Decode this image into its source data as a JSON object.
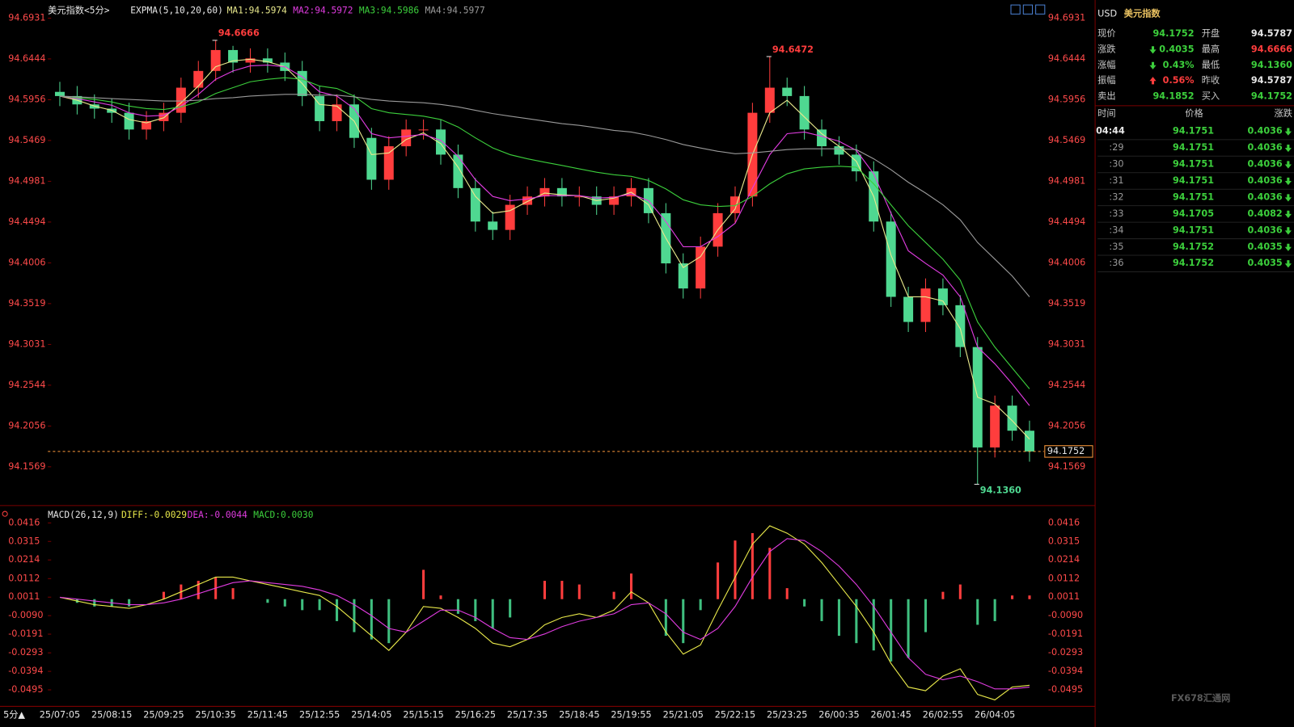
{
  "chart_data": [
    {
      "type": "candlestick",
      "title": "美元指数<5分>",
      "indicator": "EXPMA(5,10,20,60)",
      "categories": [
        "25/07:05",
        null,
        null,
        "25/08:15",
        null,
        null,
        "25/09:25",
        null,
        null,
        "25/10:35",
        null,
        null,
        "25/11:45",
        null,
        null,
        "25/12:55",
        null,
        null,
        "25/14:05",
        null,
        null,
        "25/15:15",
        null,
        null,
        "25/16:25",
        null,
        null,
        "25/17:35",
        null,
        null,
        "25/18:45",
        null,
        null,
        "25/19:55",
        null,
        null,
        "25/21:05",
        null,
        null,
        "25/22:15",
        null,
        null,
        "25/23:25",
        null,
        null,
        "26/00:35",
        null,
        null,
        "26/01:45",
        null,
        null,
        "26/02:55",
        null,
        null,
        "26/04:05",
        null,
        null
      ],
      "open": [
        94.605,
        94.6,
        94.59,
        94.585,
        94.58,
        94.56,
        94.57,
        94.58,
        94.61,
        94.63,
        94.655,
        94.64,
        94.645,
        94.64,
        94.63,
        94.6,
        94.57,
        94.59,
        94.55,
        94.5,
        94.54,
        94.56,
        94.56,
        94.53,
        94.49,
        94.45,
        94.44,
        94.47,
        94.48,
        94.49,
        94.48,
        94.48,
        94.47,
        94.48,
        94.49,
        94.46,
        94.4,
        94.37,
        94.42,
        94.46,
        94.48,
        94.58,
        94.61,
        94.6,
        94.56,
        94.54,
        94.53,
        94.51,
        94.45,
        94.36,
        94.33,
        94.37,
        94.35,
        94.3,
        94.18,
        94.23,
        94.2
      ],
      "high": [
        94.617,
        94.612,
        94.602,
        94.597,
        94.592,
        94.582,
        94.592,
        94.622,
        94.642,
        94.6666,
        94.66,
        94.657,
        94.657,
        94.652,
        94.642,
        94.612,
        94.602,
        94.602,
        94.562,
        94.552,
        94.572,
        94.572,
        94.572,
        94.542,
        94.502,
        94.462,
        94.482,
        94.492,
        94.502,
        94.502,
        94.492,
        94.492,
        94.492,
        94.502,
        94.502,
        94.472,
        94.412,
        94.432,
        94.472,
        94.492,
        94.592,
        94.6472,
        94.622,
        94.612,
        94.572,
        94.552,
        94.542,
        94.522,
        94.462,
        94.372,
        94.382,
        94.382,
        94.362,
        94.312,
        94.242,
        94.242,
        94.212
      ],
      "low": [
        94.588,
        94.578,
        94.573,
        94.568,
        94.548,
        94.548,
        94.558,
        94.568,
        94.598,
        94.618,
        94.628,
        94.628,
        94.628,
        94.618,
        94.588,
        94.558,
        94.558,
        94.538,
        94.488,
        94.488,
        94.528,
        94.548,
        94.518,
        94.478,
        94.438,
        94.428,
        94.428,
        94.458,
        94.468,
        94.468,
        94.468,
        94.458,
        94.458,
        94.468,
        94.448,
        94.388,
        94.358,
        94.358,
        94.408,
        94.448,
        94.468,
        94.568,
        94.588,
        94.548,
        94.528,
        94.518,
        94.498,
        94.438,
        94.348,
        94.318,
        94.318,
        94.338,
        94.288,
        94.136,
        94.168,
        94.188,
        94.163
      ],
      "close": [
        94.6,
        94.59,
        94.585,
        94.58,
        94.56,
        94.57,
        94.58,
        94.61,
        94.63,
        94.655,
        94.64,
        94.645,
        94.64,
        94.63,
        94.6,
        94.57,
        94.59,
        94.55,
        94.5,
        94.54,
        94.56,
        94.56,
        94.53,
        94.49,
        94.45,
        94.44,
        94.47,
        94.48,
        94.49,
        94.48,
        94.48,
        94.47,
        94.48,
        94.49,
        94.46,
        94.4,
        94.37,
        94.42,
        94.46,
        94.48,
        94.58,
        94.61,
        94.6,
        94.56,
        94.54,
        94.53,
        94.51,
        94.45,
        94.36,
        94.33,
        94.37,
        94.35,
        94.3,
        94.18,
        94.23,
        94.2,
        94.1752
      ],
      "up_color": "#ff3d3d",
      "down_color": "#4fd891",
      "series": [
        {
          "name": "MA1:94.5974",
          "color": "#e8e88c",
          "values": [
            94.6,
            94.595,
            94.588,
            94.583,
            94.572,
            94.568,
            94.574,
            94.592,
            94.612,
            94.635,
            94.642,
            94.644,
            94.641,
            94.635,
            94.615,
            94.59,
            94.588,
            94.57,
            94.53,
            94.532,
            94.548,
            94.556,
            94.543,
            94.515,
            94.48,
            94.46,
            94.463,
            94.474,
            94.484,
            94.482,
            94.481,
            94.475,
            94.478,
            94.485,
            94.47,
            94.43,
            94.395,
            94.408,
            94.44,
            94.465,
            94.53,
            94.58,
            94.595,
            94.575,
            94.555,
            94.54,
            94.522,
            94.48,
            94.41,
            94.36,
            94.36,
            94.355,
            94.322,
            94.24,
            94.232,
            94.212,
            94.19
          ]
        },
        {
          "name": "MA2:94.5972",
          "color": "#e03ce0",
          "values": [
            94.6,
            94.597,
            94.593,
            94.589,
            94.58,
            94.576,
            94.577,
            94.588,
            94.602,
            94.62,
            94.63,
            94.636,
            94.637,
            94.635,
            94.623,
            94.605,
            94.6,
            94.585,
            94.555,
            94.55,
            94.552,
            94.554,
            94.547,
            94.528,
            94.5,
            94.48,
            94.475,
            94.477,
            94.481,
            94.481,
            94.481,
            94.478,
            94.479,
            94.483,
            94.475,
            94.45,
            94.42,
            94.42,
            94.432,
            94.448,
            94.49,
            94.53,
            94.555,
            94.557,
            94.552,
            94.546,
            94.535,
            94.507,
            94.46,
            94.415,
            94.4,
            94.386,
            94.36,
            94.3,
            94.28,
            94.256,
            94.23
          ]
        },
        {
          "name": "MA3:94.5986",
          "color": "#3ccf3c",
          "values": [
            94.6,
            94.598,
            94.596,
            94.593,
            94.588,
            94.585,
            94.584,
            94.587,
            94.593,
            94.603,
            94.61,
            94.617,
            94.62,
            94.622,
            94.62,
            94.612,
            94.609,
            94.6,
            94.585,
            94.58,
            94.578,
            94.576,
            94.572,
            94.563,
            94.55,
            94.538,
            94.53,
            94.525,
            94.521,
            94.517,
            94.513,
            94.509,
            94.506,
            94.504,
            94.499,
            94.489,
            94.476,
            94.47,
            94.468,
            94.469,
            94.48,
            94.495,
            94.507,
            94.513,
            94.515,
            94.516,
            94.515,
            94.495,
            94.47,
            94.445,
            94.425,
            94.405,
            94.38,
            94.33,
            94.3,
            94.275,
            94.25
          ]
        },
        {
          "name": "MA4:94.5977",
          "color": "#9a9a9a",
          "values": [
            94.6,
            94.599,
            94.598,
            94.597,
            94.596,
            94.595,
            94.594,
            94.594,
            94.595,
            94.597,
            94.598,
            94.6,
            94.601,
            94.602,
            94.602,
            94.601,
            94.601,
            94.599,
            94.596,
            94.594,
            94.593,
            94.592,
            94.59,
            94.587,
            94.583,
            94.579,
            94.576,
            94.573,
            94.57,
            94.567,
            94.565,
            94.562,
            94.559,
            94.557,
            94.553,
            94.548,
            94.542,
            94.538,
            94.534,
            94.531,
            94.532,
            94.534,
            94.536,
            94.537,
            94.537,
            94.537,
            94.536,
            94.525,
            94.512,
            94.497,
            94.484,
            94.47,
            94.452,
            94.425,
            94.405,
            94.385,
            94.36
          ]
        }
      ],
      "ylim": [
        94.1105,
        94.7069
      ],
      "yticks": [
        94.6931,
        94.6444,
        94.5956,
        94.5469,
        94.4981,
        94.4494,
        94.4006,
        94.3519,
        94.3031,
        94.2544,
        94.2056,
        94.1569
      ],
      "annotations": [
        94.6666,
        94.6472,
        {
          "value": 94.136,
          "label": "94.1360"
        }
      ],
      "last_price": 94.1752,
      "last_price_color": "#ff9a3c"
    },
    {
      "type": "macd",
      "title": "MACD(26,12,9)",
      "series": [
        {
          "name": "DIFF:-0.0029",
          "color": "#e8e84a",
          "values": [
            0.001,
            -0.001,
            -0.003,
            -0.004,
            -0.005,
            -0.003,
            0,
            0.004,
            0.008,
            0.012,
            0.012,
            0.01,
            0.008,
            0.006,
            0.004,
            0.002,
            -0.004,
            -0.012,
            -0.02,
            -0.028,
            -0.018,
            -0.004,
            -0.005,
            -0.01,
            -0.016,
            -0.024,
            -0.026,
            -0.022,
            -0.014,
            -0.01,
            -0.008,
            -0.01,
            -0.006,
            0.004,
            -0.002,
            -0.018,
            -0.03,
            -0.025,
            -0.006,
            0.012,
            0.03,
            0.04,
            0.036,
            0.03,
            0.02,
            0.008,
            -0.004,
            -0.018,
            -0.035,
            -0.048,
            -0.05,
            -0.042,
            -0.038,
            -0.052,
            -0.055,
            -0.048,
            -0.047
          ]
        },
        {
          "name": "DEA:-0.0044",
          "color": "#e03ce0",
          "values": [
            0.001,
            0,
            -0.001,
            -0.002,
            -0.003,
            -0.003,
            -0.002,
            0,
            0.003,
            0.006,
            0.009,
            0.01,
            0.009,
            0.008,
            0.007,
            0.005,
            0.002,
            -0.003,
            -0.009,
            -0.016,
            -0.018,
            -0.012,
            -0.006,
            -0.006,
            -0.01,
            -0.016,
            -0.021,
            -0.022,
            -0.019,
            -0.015,
            -0.012,
            -0.01,
            -0.008,
            -0.003,
            -0.002,
            -0.008,
            -0.018,
            -0.022,
            -0.016,
            -0.004,
            0.012,
            0.026,
            0.033,
            0.032,
            0.026,
            0.018,
            0.008,
            -0.004,
            -0.018,
            -0.032,
            -0.041,
            -0.044,
            -0.042,
            -0.045,
            -0.049,
            -0.049,
            -0.048
          ]
        }
      ],
      "histogram": {
        "name": "MACD:0.0030",
        "color": "#3ccf3c",
        "up_color": "#ff3d3d",
        "down_color": "#3fbf7f",
        "values": [
          0,
          -0.002,
          -0.004,
          -0.004,
          -0.004,
          0,
          0.004,
          0.008,
          0.01,
          0.012,
          0.006,
          0,
          -0.002,
          -0.004,
          -0.006,
          -0.006,
          -0.012,
          -0.018,
          -0.022,
          -0.024,
          0,
          0.016,
          0.002,
          -0.008,
          -0.012,
          -0.016,
          -0.01,
          0,
          0.01,
          0.01,
          0.008,
          0,
          0.004,
          0.014,
          0,
          -0.02,
          -0.024,
          -0.006,
          0.02,
          0.032,
          0.036,
          0.028,
          0.006,
          -0.004,
          -0.012,
          -0.02,
          -0.024,
          -0.028,
          -0.034,
          -0.032,
          -0.018,
          0.004,
          0.008,
          -0.014,
          -0.012,
          0.002,
          0.002
        ]
      },
      "ylim": [
        -0.0585,
        0.0497
      ],
      "yticks": [
        0.0416,
        0.0315,
        0.0214,
        0.0112,
        0.0011,
        {
          "value": -0.009,
          "label": "-0.0090"
        },
        -0.0191,
        -0.0293,
        -0.0394,
        -0.0495
      ]
    }
  ],
  "period_button": "5分▲",
  "quote": {
    "code": "USD",
    "title": "美元指数",
    "rows": [
      [
        {
          "label": "现价",
          "value": "94.1752",
          "color": "#3ccf3c"
        },
        {
          "label": "开盘",
          "value": "94.5787",
          "color": "#e6e6e6"
        }
      ],
      [
        {
          "label": "涨跌",
          "value": "0.4035",
          "color": "#3ccf3c",
          "trend": "down"
        },
        {
          "label": "最高",
          "value": "94.6666",
          "color": "#ff3d3d"
        }
      ],
      [
        {
          "label": "涨幅",
          "value": "0.43%",
          "color": "#3ccf3c",
          "trend": "down"
        },
        {
          "label": "最低",
          "value": "94.1360",
          "color": "#3ccf3c"
        }
      ],
      [
        {
          "label": "振幅",
          "value": "0.56%",
          "color": "#ff3d3d",
          "trend": "up"
        },
        {
          "label": "昨收",
          "value": "94.5787",
          "color": "#e6e6e6"
        }
      ],
      [
        {
          "label": "卖出",
          "value": "94.1852",
          "color": "#3ccf3c"
        },
        {
          "label": "买入",
          "value": "94.1752",
          "color": "#3ccf3c"
        }
      ]
    ]
  },
  "ticks_table": {
    "headers": [
      "时间",
      "价格",
      "涨跌"
    ],
    "rows": [
      [
        "04:44",
        "94.1751",
        "0.4036"
      ],
      [
        ":29",
        "94.1751",
        "0.4036"
      ],
      [
        ":30",
        "94.1751",
        "0.4036"
      ],
      [
        ":31",
        "94.1751",
        "0.4036"
      ],
      [
        ":32",
        "94.1751",
        "0.4036"
      ],
      [
        ":33",
        "94.1705",
        "0.4082"
      ],
      [
        ":34",
        "94.1751",
        "0.4036"
      ],
      [
        ":35",
        "94.1752",
        "0.4035"
      ],
      [
        ":36",
        "94.1752",
        "0.4035"
      ]
    ]
  },
  "watermark": "FX678汇通网"
}
